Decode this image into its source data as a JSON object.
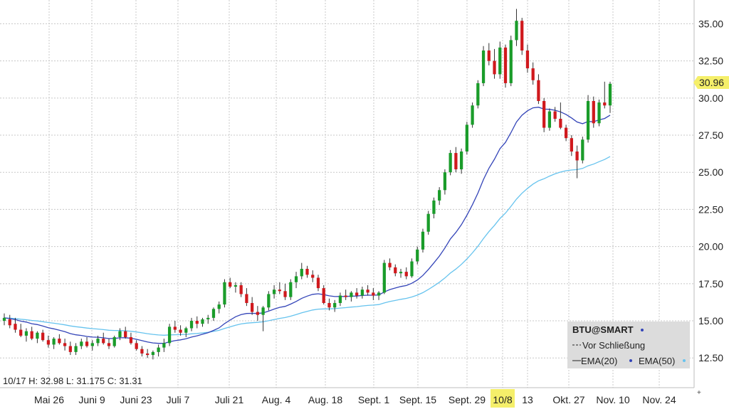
{
  "chart_data": {
    "type": "candlestick",
    "symbol": "BTU@SMART",
    "y_ticks": [
      "35.00",
      "32.50",
      "30.00",
      "27.50",
      "25.00",
      "22.50",
      "20.00",
      "17.50",
      "15.00",
      "12.50"
    ],
    "y_tick_values": [
      35,
      32.5,
      30,
      27.5,
      25,
      22.5,
      20,
      17.5,
      15,
      12.5
    ],
    "ylim": [
      10.5,
      36.6
    ],
    "last_price_label": "30.96",
    "last_price": 30.96,
    "x_ticks": [
      "Mai 26",
      "Juni 9",
      "Juni 23",
      "Juli 7",
      "Juli 21",
      "Aug. 4",
      "Aug. 18",
      "Sept. 1",
      "Sept. 15",
      "Sept. 29",
      "10/8",
      "13",
      "Okt. 27",
      "Nov. 10",
      "Nov. 24"
    ],
    "highlighted_x_tick": "10/8",
    "info_line": "10/17 H: 32.98 L: 31.175 C: 31.31",
    "legend": {
      "title": "BTU@SMART",
      "items": [
        "Vor Schließung",
        "EMA(20)",
        "EMA(50)"
      ]
    },
    "colors": {
      "up": "#1a9c2a",
      "down": "#d0191d",
      "ema20": "#3344b8",
      "ema50": "#66c3ee",
      "price_marker": "#f5ef6a",
      "highlight": "#f5ef6a"
    },
    "candles": [
      [
        15.0,
        15.5,
        14.7,
        15.2
      ],
      [
        15.1,
        15.4,
        14.5,
        14.7
      ],
      [
        14.8,
        15.2,
        14.2,
        14.4
      ],
      [
        14.4,
        14.8,
        13.9,
        14.0
      ],
      [
        14.0,
        14.5,
        13.6,
        14.3
      ],
      [
        14.3,
        14.6,
        13.7,
        13.8
      ],
      [
        13.8,
        14.3,
        13.5,
        14.2
      ],
      [
        14.2,
        14.4,
        13.6,
        13.7
      ],
      [
        13.7,
        14.0,
        13.2,
        13.4
      ],
      [
        13.4,
        13.9,
        13.1,
        13.8
      ],
      [
        13.8,
        14.1,
        13.4,
        13.5
      ],
      [
        13.5,
        13.8,
        13.0,
        13.3
      ],
      [
        13.3,
        13.6,
        12.7,
        12.9
      ],
      [
        12.9,
        13.5,
        12.7,
        13.3
      ],
      [
        13.3,
        13.8,
        13.1,
        13.6
      ],
      [
        13.6,
        13.9,
        13.2,
        13.3
      ],
      [
        13.3,
        13.7,
        13.0,
        13.5
      ],
      [
        13.5,
        14.0,
        13.3,
        13.8
      ],
      [
        13.8,
        14.2,
        13.4,
        13.5
      ],
      [
        13.5,
        13.8,
        13.1,
        13.3
      ],
      [
        13.3,
        14.0,
        13.2,
        13.9
      ],
      [
        13.9,
        14.5,
        13.7,
        14.3
      ],
      [
        14.3,
        14.6,
        13.8,
        13.9
      ],
      [
        13.9,
        14.2,
        13.4,
        13.5
      ],
      [
        13.5,
        13.7,
        13.0,
        13.1
      ],
      [
        13.1,
        13.3,
        12.6,
        12.8
      ],
      [
        12.8,
        13.1,
        12.5,
        12.7
      ],
      [
        12.7,
        13.0,
        12.4,
        12.9
      ],
      [
        12.9,
        13.4,
        12.6,
        13.2
      ],
      [
        13.2,
        13.8,
        12.9,
        13.5
      ],
      [
        13.5,
        14.8,
        13.3,
        14.6
      ],
      [
        14.6,
        15.0,
        14.2,
        14.4
      ],
      [
        14.4,
        14.7,
        14.0,
        14.2
      ],
      [
        14.2,
        14.6,
        13.9,
        14.5
      ],
      [
        14.5,
        15.2,
        14.3,
        15.0
      ],
      [
        15.0,
        15.3,
        14.5,
        14.8
      ],
      [
        14.8,
        15.2,
        14.6,
        15.1
      ],
      [
        15.1,
        15.4,
        14.8,
        15.2
      ],
      [
        15.2,
        15.9,
        15.0,
        15.8
      ],
      [
        15.8,
        16.3,
        15.5,
        16.1
      ],
      [
        16.1,
        17.8,
        15.9,
        17.6
      ],
      [
        17.6,
        17.9,
        17.2,
        17.3
      ],
      [
        17.3,
        17.6,
        16.9,
        17.4
      ],
      [
        17.4,
        17.6,
        16.6,
        16.8
      ],
      [
        16.8,
        17.2,
        16.0,
        16.2
      ],
      [
        16.2,
        16.6,
        15.4,
        15.6
      ],
      [
        15.6,
        16.0,
        15.0,
        15.4
      ],
      [
        15.4,
        16.0,
        14.3,
        15.9
      ],
      [
        15.9,
        17.0,
        15.7,
        16.8
      ],
      [
        16.8,
        17.4,
        16.5,
        17.1
      ],
      [
        17.1,
        17.6,
        16.8,
        17.0
      ],
      [
        17.0,
        17.5,
        16.4,
        16.6
      ],
      [
        16.6,
        17.8,
        16.4,
        17.6
      ],
      [
        17.6,
        18.3,
        17.2,
        18.0
      ],
      [
        18.0,
        18.9,
        17.8,
        18.5
      ],
      [
        18.5,
        18.7,
        17.9,
        18.1
      ],
      [
        18.1,
        18.4,
        17.6,
        17.9
      ],
      [
        17.9,
        18.1,
        17.0,
        17.2
      ],
      [
        17.2,
        17.4,
        16.1,
        16.2
      ],
      [
        16.2,
        16.5,
        15.7,
        15.9
      ],
      [
        15.9,
        16.4,
        15.6,
        16.2
      ],
      [
        16.2,
        16.9,
        16.0,
        16.7
      ],
      [
        16.7,
        17.1,
        16.4,
        16.6
      ],
      [
        16.6,
        17.0,
        16.3,
        16.9
      ],
      [
        16.9,
        17.2,
        16.5,
        16.7
      ],
      [
        16.7,
        17.3,
        16.5,
        17.1
      ],
      [
        17.1,
        17.4,
        16.7,
        16.9
      ],
      [
        16.9,
        17.2,
        16.4,
        16.7
      ],
      [
        16.7,
        17.0,
        16.4,
        16.9
      ],
      [
        16.9,
        19.1,
        16.8,
        18.9
      ],
      [
        18.9,
        19.2,
        18.4,
        18.6
      ],
      [
        18.6,
        18.8,
        18.0,
        18.2
      ],
      [
        18.2,
        18.5,
        17.9,
        18.3
      ],
      [
        18.3,
        18.6,
        17.8,
        18.0
      ],
      [
        18.0,
        19.2,
        17.9,
        19.0
      ],
      [
        19.0,
        20.0,
        18.8,
        19.8
      ],
      [
        19.8,
        21.2,
        19.6,
        21.0
      ],
      [
        21.0,
        22.4,
        20.8,
        22.2
      ],
      [
        22.2,
        23.3,
        21.9,
        23.1
      ],
      [
        23.1,
        24.0,
        22.8,
        23.8
      ],
      [
        23.8,
        25.2,
        23.5,
        25.0
      ],
      [
        25.0,
        26.5,
        24.8,
        26.3
      ],
      [
        26.3,
        26.7,
        25.0,
        25.2
      ],
      [
        25.2,
        26.6,
        24.9,
        26.4
      ],
      [
        26.4,
        28.4,
        26.2,
        28.2
      ],
      [
        28.2,
        29.7,
        28.0,
        29.5
      ],
      [
        29.5,
        31.2,
        29.3,
        31.0
      ],
      [
        31.0,
        33.5,
        30.8,
        33.2
      ],
      [
        33.2,
        33.7,
        32.2,
        32.5
      ],
      [
        32.5,
        33.3,
        31.3,
        31.6
      ],
      [
        31.6,
        33.8,
        31.3,
        33.4
      ],
      [
        33.4,
        33.6,
        30.7,
        31.0
      ],
      [
        31.0,
        34.2,
        30.8,
        33.9
      ],
      [
        33.9,
        36.0,
        33.5,
        35.2
      ],
      [
        35.2,
        35.4,
        32.9,
        33.2
      ],
      [
        33.2,
        33.6,
        31.7,
        32.0
      ],
      [
        32.0,
        32.4,
        30.9,
        31.2
      ],
      [
        31.2,
        31.6,
        29.6,
        29.8
      ],
      [
        29.8,
        30.0,
        27.7,
        28.0
      ],
      [
        28.0,
        29.3,
        27.8,
        29.1
      ],
      [
        29.1,
        29.4,
        28.4,
        28.6
      ],
      [
        28.6,
        29.7,
        27.9,
        28.0
      ],
      [
        28.0,
        28.2,
        27.1,
        27.3
      ],
      [
        27.3,
        27.5,
        26.1,
        26.4
      ],
      [
        26.4,
        26.8,
        24.6,
        25.8
      ],
      [
        25.8,
        27.4,
        25.6,
        27.2
      ],
      [
        27.2,
        30.2,
        27.0,
        29.8
      ],
      [
        29.8,
        30.1,
        28.0,
        28.3
      ],
      [
        28.3,
        29.9,
        28.1,
        29.7
      ],
      [
        29.7,
        31.1,
        29.3,
        29.5
      ],
      [
        29.5,
        31.1,
        29.0,
        30.96
      ]
    ]
  }
}
